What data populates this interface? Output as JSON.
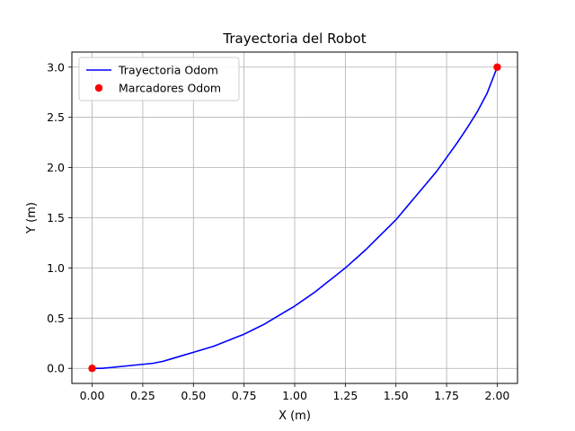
{
  "chart_data": {
    "type": "line",
    "title": "Trayectoria del Robot",
    "xlabel": "X (m)",
    "ylabel": "Y (m)",
    "xlim": [
      -0.1,
      2.1
    ],
    "ylim": [
      -0.15,
      3.15
    ],
    "xticks": [
      "0.00",
      "0.25",
      "0.50",
      "0.75",
      "1.00",
      "1.25",
      "1.50",
      "1.75",
      "2.00"
    ],
    "yticks": [
      "0.0",
      "0.5",
      "1.0",
      "1.5",
      "2.0",
      "2.5",
      "3.0"
    ],
    "grid": true,
    "legend_position": "top-left",
    "series": [
      {
        "name": "Trayectoria Odom",
        "kind": "line",
        "color": "#0000ff",
        "x": [
          0.0,
          0.05,
          0.1,
          0.15,
          0.2,
          0.25,
          0.3,
          0.35,
          0.4,
          0.45,
          0.5,
          0.55,
          0.6,
          0.65,
          0.7,
          0.75,
          0.8,
          0.85,
          0.9,
          0.95,
          1.0,
          1.05,
          1.1,
          1.15,
          1.2,
          1.25,
          1.3,
          1.35,
          1.4,
          1.45,
          1.5,
          1.55,
          1.6,
          1.65,
          1.7,
          1.75,
          1.8,
          1.85,
          1.9,
          1.95,
          2.0
        ],
        "y": [
          0.0,
          0.0,
          0.01,
          0.02,
          0.03,
          0.04,
          0.05,
          0.07,
          0.1,
          0.13,
          0.16,
          0.19,
          0.22,
          0.26,
          0.3,
          0.34,
          0.39,
          0.44,
          0.5,
          0.56,
          0.62,
          0.69,
          0.76,
          0.84,
          0.92,
          1.0,
          1.09,
          1.18,
          1.28,
          1.38,
          1.48,
          1.6,
          1.72,
          1.84,
          1.96,
          2.1,
          2.24,
          2.39,
          2.55,
          2.74,
          3.0
        ]
      },
      {
        "name": "Marcadores Odom",
        "kind": "marker",
        "color": "#ff0000",
        "x": [
          0.0,
          2.0
        ],
        "y": [
          0.0,
          3.0
        ]
      }
    ]
  }
}
